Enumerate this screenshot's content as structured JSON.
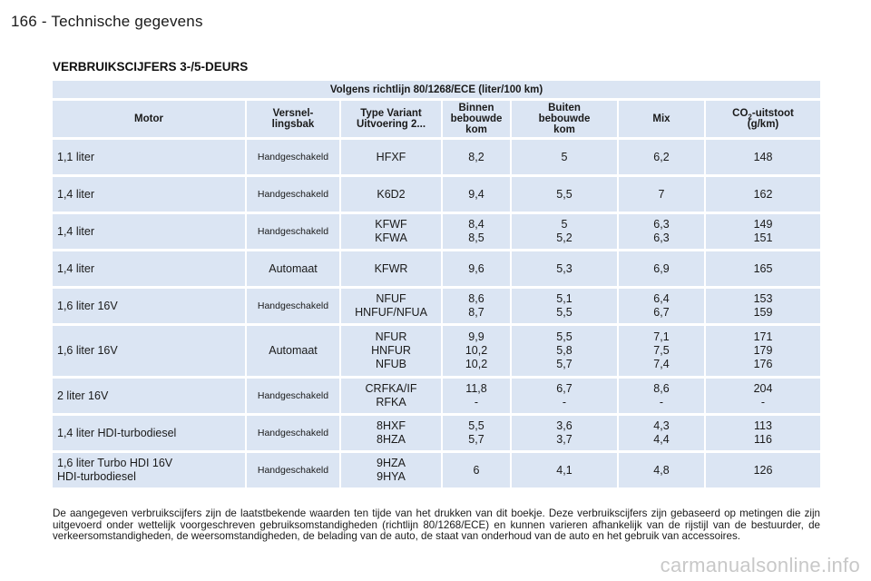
{
  "page": {
    "header": "166 - Technische gegevens",
    "section_title": "VERBRUIKSCIJFERS 3-/5-DEURS",
    "watermark": "carmanualsonline.info"
  },
  "table": {
    "band": "Volgens richtlijn 80/1268/ECE (liter/100 km)",
    "headers": {
      "motor": "Motor",
      "trans_1": "Versnel-",
      "trans_2": "lingsbak",
      "type_1": "Type Variant",
      "type_2": "Uitvoering 2...",
      "binnen_1": "Binnen",
      "binnen_2": "bebouwde",
      "binnen_3": "kom",
      "buiten_1": "Buiten",
      "buiten_2": "bebouwde",
      "buiten_3": "kom",
      "mix": "Mix",
      "co2_pre": "CO",
      "co2_sub": "2",
      "co2_post": "-uitstoot",
      "co2_unit": "(g/km)"
    },
    "rows": [
      {
        "motor": [
          "1,1 liter"
        ],
        "trans": "Handgeschakeld",
        "small": true,
        "type": [
          "HFXF"
        ],
        "binnen": [
          "8,2"
        ],
        "buiten": [
          "5"
        ],
        "mix": [
          "6,2"
        ],
        "co2": [
          "148"
        ],
        "h": 38
      },
      {
        "motor": [
          "1,4 liter"
        ],
        "trans": "Handgeschakeld",
        "small": true,
        "type": [
          "K6D2"
        ],
        "binnen": [
          "9,4"
        ],
        "buiten": [
          "5,5"
        ],
        "mix": [
          "7"
        ],
        "co2": [
          "162"
        ],
        "h": 38
      },
      {
        "motor": [
          "1,4 liter"
        ],
        "trans": "Handgeschakeld",
        "small": true,
        "type": [
          "KFWF",
          "KFWA"
        ],
        "binnen": [
          "8,4",
          "8,5"
        ],
        "buiten": [
          "5",
          "5,2"
        ],
        "mix": [
          "6,3",
          "6,3"
        ],
        "co2": [
          "149",
          "151"
        ],
        "h": 38
      },
      {
        "motor": [
          "1,4 liter"
        ],
        "trans": "Automaat",
        "small": false,
        "type": [
          "KFWR"
        ],
        "binnen": [
          "9,6"
        ],
        "buiten": [
          "5,3"
        ],
        "mix": [
          "6,9"
        ],
        "co2": [
          "165"
        ],
        "h": 38
      },
      {
        "motor": [
          "1,6 liter 16V"
        ],
        "trans": "Handgeschakeld",
        "small": true,
        "type": [
          "NFUF",
          "HNFUF/NFUA"
        ],
        "binnen": [
          "8,6",
          "8,7"
        ],
        "buiten": [
          "5,1",
          "5,5"
        ],
        "mix": [
          "6,4",
          "6,7"
        ],
        "co2": [
          "153",
          "159"
        ],
        "h": 38
      },
      {
        "motor": [
          "1,6 liter 16V"
        ],
        "trans": "Automaat",
        "small": false,
        "type": [
          "NFUR",
          "HNFUR",
          "NFUB"
        ],
        "binnen": [
          "9,9",
          "10,2",
          "10,2"
        ],
        "buiten": [
          "5,5",
          "5,8",
          "5,7"
        ],
        "mix": [
          "7,1",
          "7,5",
          "7,4"
        ],
        "co2": [
          "171",
          "179",
          "176"
        ],
        "h": 55
      },
      {
        "motor": [
          "2 liter 16V"
        ],
        "trans": "Handgeschakeld",
        "small": true,
        "type": [
          "CRFKA/IF",
          "RFKA"
        ],
        "binnen": [
          "11,8",
          "-"
        ],
        "buiten": [
          "6,7",
          "-"
        ],
        "mix": [
          "8,6",
          "-"
        ],
        "co2": [
          "204",
          "-"
        ],
        "h": 38
      },
      {
        "motor": [
          "1,4 liter HDI-turbodiesel"
        ],
        "trans": "Handgeschakeld",
        "small": true,
        "type": [
          "8HXF",
          "8HZA"
        ],
        "binnen": [
          "5,5",
          "5,7"
        ],
        "buiten": [
          "3,6",
          "3,7"
        ],
        "mix": [
          "4,3",
          "4,4"
        ],
        "co2": [
          "113",
          "116"
        ],
        "h": 38
      },
      {
        "motor": [
          "1,6 liter Turbo HDI 16V",
          "HDI-turbodiesel"
        ],
        "trans": "Handgeschakeld",
        "small": true,
        "type": [
          "9HZA",
          "9HYA"
        ],
        "binnen": [
          "6"
        ],
        "buiten": [
          "4,1"
        ],
        "mix": [
          "4,8"
        ],
        "co2": [
          "126"
        ],
        "h": 38
      }
    ]
  },
  "footnote": "De aangegeven verbruikscijfers zijn de laatstbekende waarden ten tijde van het drukken van dit boekje. Deze verbruikscijfers zijn gebaseerd op metingen die zijn uitgevoerd onder wettelijk voorgeschreven gebruiksomstandigheden (richtlijn 80/1268/ECE) en kunnen varieren afhankelijk van de rijstijl van de bestuurder, de verkeersomstandigheden, de weersomstandigheden, de belading van de auto, de staat van onderhoud van de auto en het gebruik van accessoires."
}
